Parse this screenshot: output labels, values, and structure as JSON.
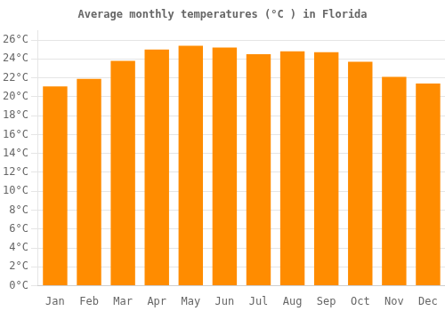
{
  "chart_data": {
    "type": "bar",
    "title": "Average monthly temperatures (°C ) in Florida",
    "categories": [
      "Jan",
      "Feb",
      "Mar",
      "Apr",
      "May",
      "Jun",
      "Jul",
      "Aug",
      "Sep",
      "Oct",
      "Nov",
      "Dec"
    ],
    "values": [
      21.1,
      21.9,
      23.8,
      25.0,
      25.4,
      25.2,
      24.5,
      24.8,
      24.7,
      23.7,
      22.1,
      21.4
    ],
    "color": "#FF8C00",
    "ylim": [
      0,
      27
    ],
    "yticks": [
      {
        "value": 0,
        "label": "0°C"
      },
      {
        "value": 2,
        "label": "2°C"
      },
      {
        "value": 4,
        "label": "4°C"
      },
      {
        "value": 6,
        "label": "6°C"
      },
      {
        "value": 8,
        "label": "8°C"
      },
      {
        "value": 10,
        "label": "10°C"
      },
      {
        "value": 12,
        "label": "12°C"
      },
      {
        "value": 14,
        "label": "14°C"
      },
      {
        "value": 16,
        "label": "16°C"
      },
      {
        "value": 18,
        "label": "18°C"
      },
      {
        "value": 20,
        "label": "20°C"
      },
      {
        "value": 22,
        "label": "22°C"
      },
      {
        "value": 24,
        "label": "24°C"
      },
      {
        "value": 26,
        "label": "26°C"
      }
    ],
    "grid": true
  }
}
